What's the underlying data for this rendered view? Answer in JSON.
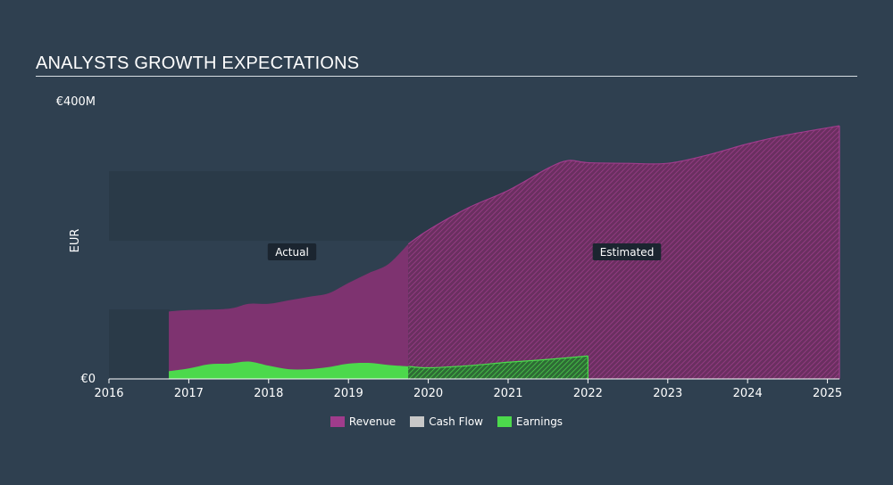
{
  "title": "ANALYSTS GROWTH EXPECTATIONS",
  "colors": {
    "background": "#2f4050",
    "revenue": "#a03c8c",
    "cash_flow": "#c8c8c8",
    "earnings": "#4cd94c",
    "band": "#2a3a48"
  },
  "legend": [
    {
      "name": "Revenue",
      "color": "#a03c8c"
    },
    {
      "name": "Cash Flow",
      "color": "#c8c8c8"
    },
    {
      "name": "Earnings",
      "color": "#4cd94c"
    }
  ],
  "chart_data": {
    "type": "area",
    "title": "ANALYSTS GROWTH EXPECTATIONS",
    "ylabel": "EUR",
    "ylim": [
      0,
      400
    ],
    "y_ticks": [
      {
        "value": 0,
        "label": "€0"
      },
      {
        "value": 400,
        "label": "€400M"
      }
    ],
    "xlim": [
      2016,
      2025.15
    ],
    "x_ticks": [
      "2016",
      "2017",
      "2018",
      "2019",
      "2020",
      "2021",
      "2022",
      "2023",
      "2024",
      "2025"
    ],
    "actual_end": 2019.75,
    "phase_labels": {
      "actual": "Actual",
      "estimated": "Estimated"
    },
    "grid": false,
    "legend_position": "bottom",
    "series": [
      {
        "name": "Revenue",
        "points": [
          [
            2016.75,
            97
          ],
          [
            2017.0,
            99
          ],
          [
            2017.5,
            101
          ],
          [
            2017.75,
            108
          ],
          [
            2018.0,
            108
          ],
          [
            2018.25,
            113
          ],
          [
            2018.5,
            118
          ],
          [
            2018.75,
            123
          ],
          [
            2019.0,
            138
          ],
          [
            2019.25,
            152
          ],
          [
            2019.5,
            165
          ],
          [
            2019.75,
            194
          ],
          [
            2020.0,
            214
          ],
          [
            2020.5,
            246
          ],
          [
            2021.0,
            271
          ],
          [
            2021.5,
            303
          ],
          [
            2021.75,
            314
          ],
          [
            2022.0,
            311
          ],
          [
            2022.5,
            310
          ],
          [
            2023.0,
            310
          ],
          [
            2023.5,
            322
          ],
          [
            2024.0,
            338
          ],
          [
            2024.5,
            351
          ],
          [
            2025.15,
            364
          ]
        ]
      },
      {
        "name": "Earnings",
        "points": [
          [
            2016.75,
            11
          ],
          [
            2017.0,
            15
          ],
          [
            2017.25,
            21
          ],
          [
            2017.5,
            22
          ],
          [
            2017.75,
            25
          ],
          [
            2018.0,
            19
          ],
          [
            2018.25,
            14
          ],
          [
            2018.5,
            14
          ],
          [
            2018.75,
            17
          ],
          [
            2019.0,
            22
          ],
          [
            2019.25,
            23
          ],
          [
            2019.5,
            20
          ],
          [
            2019.75,
            18
          ],
          [
            2020.0,
            16
          ],
          [
            2020.5,
            19
          ],
          [
            2021.0,
            24
          ],
          [
            2021.5,
            28
          ],
          [
            2022.0,
            33
          ]
        ]
      }
    ]
  }
}
